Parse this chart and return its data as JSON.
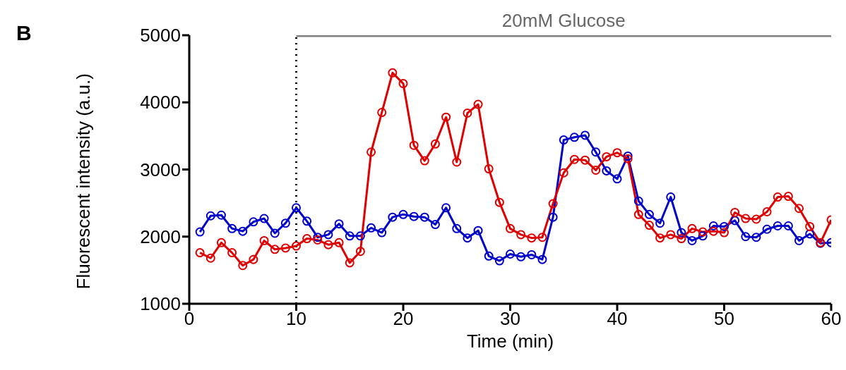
{
  "chart_data": {
    "type": "line",
    "xlabel": "Time (min)",
    "ylabel": "Fluorescent intensity (a.u.)",
    "annotations": [
      "B"
    ],
    "x": [
      1,
      2,
      3,
      4,
      5,
      6,
      7,
      8,
      9,
      10,
      11,
      12,
      13,
      14,
      15,
      16,
      17,
      18,
      19,
      20,
      21,
      22,
      23,
      24,
      25,
      26,
      27,
      28,
      29,
      30,
      31,
      32,
      33,
      34,
      35,
      36,
      37,
      38,
      39,
      40,
      41,
      42,
      43,
      44,
      45,
      46,
      47,
      48,
      49,
      50,
      51,
      52,
      53,
      54,
      55,
      56,
      57,
      58,
      59,
      60
    ],
    "series": [
      {
        "color": "#0000cc",
        "values": [
          2070,
          2310,
          2320,
          2120,
          2080,
          2220,
          2270,
          2050,
          2200,
          2430,
          2230,
          1990,
          2030,
          2190,
          2010,
          2010,
          2130,
          2060,
          2290,
          2330,
          2300,
          2290,
          2180,
          2430,
          2120,
          1980,
          2090,
          1710,
          1640,
          1740,
          1700,
          1730,
          1660,
          2290,
          3440,
          3480,
          3510,
          3260,
          2980,
          2860,
          3200,
          2530,
          2330,
          2200,
          2590,
          2060,
          1940,
          2010,
          2160,
          2150,
          2240,
          2000,
          1990,
          2110,
          2160,
          2160,
          1940,
          2040,
          1900,
          1910
        ]
      },
      {
        "name": "20mM Glucose",
        "color": "#808080",
        "x": [
          10,
          60
        ],
        "values": [
          5000,
          5000
        ],
        "marker": "none"
      },
      {
        "color": "#e00000",
        "values": [
          1760,
          1680,
          1910,
          1760,
          1570,
          1660,
          1940,
          1810,
          1830,
          1860,
          1970,
          1950,
          1880,
          1910,
          1610,
          1780,
          3260,
          3850,
          4440,
          4280,
          3360,
          3130,
          3380,
          3780,
          3110,
          3840,
          3970,
          3010,
          2510,
          2120,
          2030,
          1980,
          1990,
          2490,
          2950,
          3150,
          3140,
          2990,
          3190,
          3250,
          3160,
          2330,
          2170,
          1980,
          2030,
          1970,
          2120,
          2070,
          2080,
          2060,
          2360,
          2270,
          2260,
          2370,
          2590,
          2600,
          2420,
          2150,
          1910,
          2250
        ]
      }
    ],
    "xlim": [
      0,
      60
    ],
    "xticks": [
      0,
      10,
      20,
      30,
      40,
      50,
      60
    ],
    "ylim": [
      1000,
      5000
    ],
    "yticks": [
      1000,
      2000,
      3000,
      4000,
      5000
    ],
    "ref_lines": [
      {
        "axis": "x",
        "value": 10,
        "color": "#000000",
        "line_style": "dotted"
      }
    ],
    "marker": "circle",
    "line_style": "solid",
    "grid": false,
    "legend": false
  }
}
